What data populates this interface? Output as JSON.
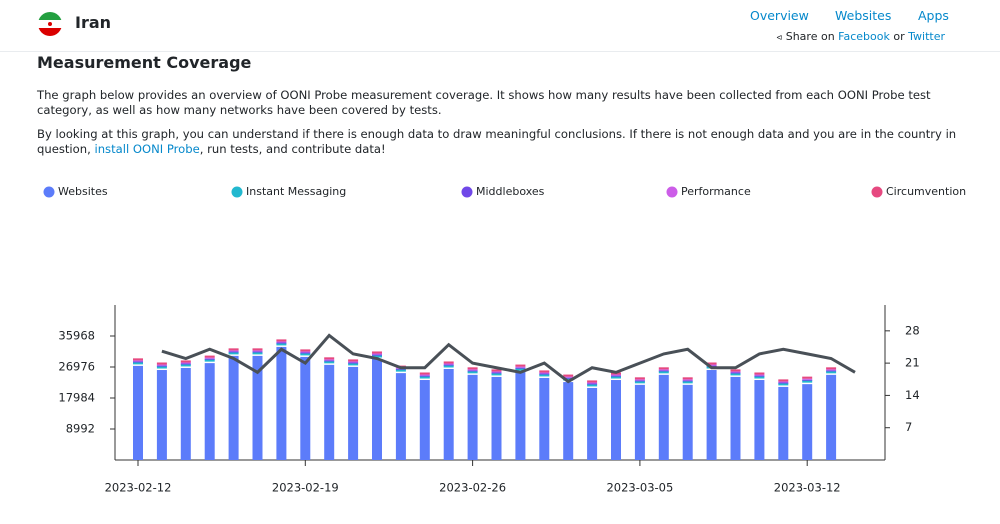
{
  "header": {
    "country": "Iran",
    "nav": [
      "Overview",
      "Websites",
      "Apps"
    ],
    "share": {
      "prefix": "Share on",
      "facebook": "Facebook",
      "or": "or",
      "twitter": "Twitter"
    }
  },
  "section": {
    "title": "Measurement Coverage",
    "intro": "The graph below provides an overview of OONI Probe measurement coverage. It shows how many results have been collected from each OONI Probe test category, as well as how many networks have been covered by tests.",
    "advice": {
      "before": "By looking at this graph, you can understand if there is enough data to draw meaningful conclusions. If there is not enough data and you are in the country in question,",
      "link": "install OONI Probe",
      "after": ", run tests, and contribute data!"
    }
  },
  "chart_data": {
    "type": "bar",
    "stacked": true,
    "categories": [
      "2023-02-12",
      null,
      null,
      null,
      null,
      null,
      null,
      "2023-02-19",
      null,
      null,
      null,
      null,
      null,
      null,
      "2023-02-26",
      null,
      null,
      null,
      null,
      null,
      null,
      "2023-03-05",
      null,
      null,
      null,
      null,
      null,
      null,
      "2023-03-12",
      null,
      null
    ],
    "series": [
      {
        "name": "Websites",
        "color": "#5c7cfa",
        "values": [
          27300,
          26100,
          26700,
          28100,
          30200,
          30200,
          32800,
          29900,
          27600,
          27000,
          29300,
          25200,
          23200,
          26400,
          24700,
          24100,
          25500,
          23800,
          22600,
          20900,
          23200,
          21800,
          24700,
          21800,
          26100,
          24100,
          23200,
          21200,
          22000,
          24700,
          null
        ]
      },
      {
        "name": "Instant Messaging",
        "color": "#22b8cf",
        "values": [
          700,
          700,
          700,
          700,
          700,
          700,
          700,
          700,
          700,
          700,
          700,
          700,
          700,
          700,
          700,
          700,
          700,
          700,
          700,
          700,
          700,
          700,
          700,
          700,
          700,
          700,
          700,
          700,
          700,
          700,
          null
        ]
      },
      {
        "name": "Middleboxes",
        "color": "#7048e8",
        "values": [
          150,
          150,
          150,
          150,
          150,
          150,
          150,
          150,
          150,
          150,
          150,
          150,
          150,
          150,
          150,
          150,
          150,
          150,
          150,
          150,
          150,
          150,
          150,
          150,
          150,
          150,
          150,
          150,
          150,
          150,
          null
        ]
      },
      {
        "name": "Performance",
        "color": "#cc5de8",
        "values": [
          300,
          300,
          300,
          300,
          300,
          300,
          300,
          300,
          300,
          300,
          300,
          300,
          300,
          300,
          300,
          300,
          300,
          300,
          300,
          300,
          300,
          300,
          300,
          300,
          300,
          300,
          300,
          300,
          300,
          300,
          null
        ]
      },
      {
        "name": "Circumvention",
        "color": "#e64980",
        "values": [
          600,
          600,
          600,
          600,
          600,
          600,
          600,
          600,
          600,
          600,
          600,
          600,
          600,
          600,
          600,
          600,
          600,
          600,
          600,
          600,
          600,
          600,
          600,
          600,
          600,
          600,
          600,
          600,
          600,
          600,
          null
        ]
      },
      {
        "type": "line",
        "axis": "y2",
        "color": "#495057",
        "values": [
          null,
          23.6,
          22,
          24,
          22,
          19,
          24,
          21,
          27,
          23,
          22,
          20,
          20,
          25,
          21,
          20,
          19,
          21,
          17,
          20,
          19,
          21,
          23,
          24,
          20,
          20,
          23,
          24,
          23,
          22,
          19
        ]
      }
    ],
    "ylim": [
      0,
      44960
    ],
    "yticks": [
      8992,
      17984,
      26976,
      35968
    ],
    "y2lim": [
      0,
      33.6
    ],
    "y2ticks": [
      7,
      14,
      21,
      28
    ]
  }
}
